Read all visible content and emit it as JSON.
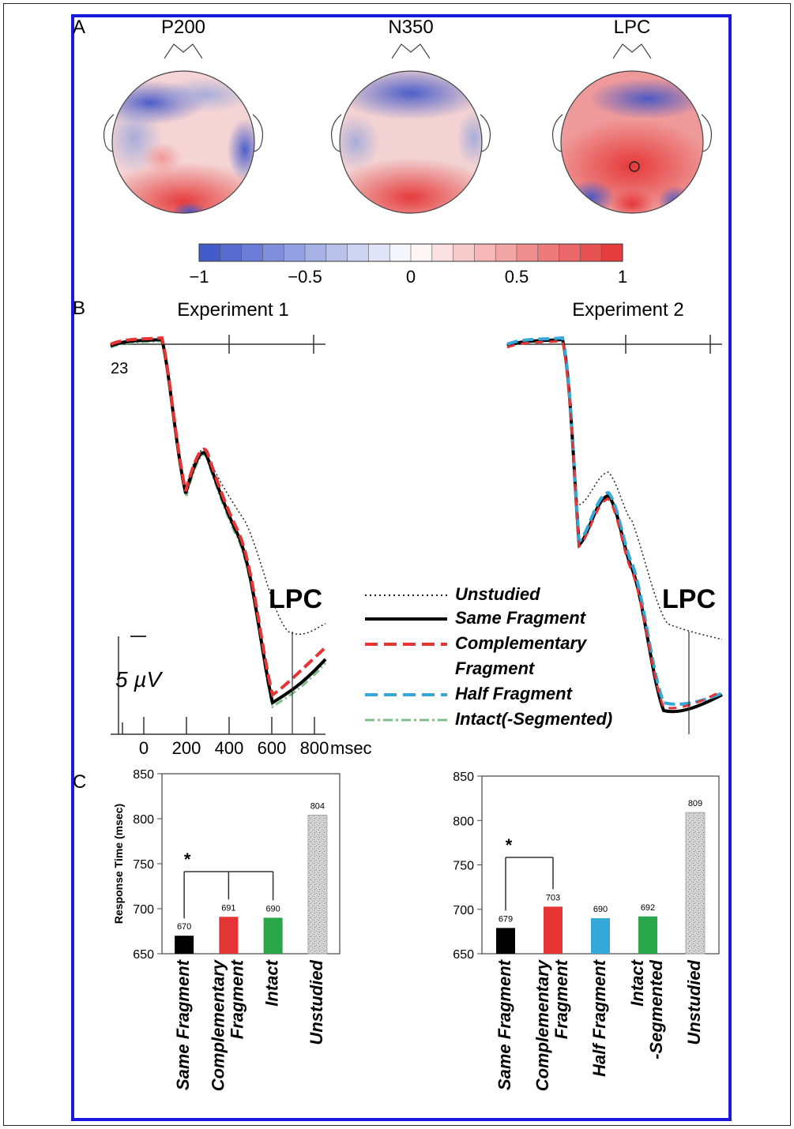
{
  "panel_labels": {
    "a": "A",
    "b": "B",
    "c": "C"
  },
  "topomaps": [
    {
      "label": "P200"
    },
    {
      "label": "N350"
    },
    {
      "label": "LPC"
    }
  ],
  "colorbar": {
    "ticks": [
      "−1",
      "−0.5",
      "0",
      "0.5",
      "1"
    ],
    "colors": {
      "negative": "#3a52c8",
      "neutral": "#ffffff",
      "positive": "#e53434"
    }
  },
  "erp": {
    "electrode_label": "23",
    "scale_label": "5 µV",
    "x_ticks": [
      "0",
      "200",
      "400",
      "600",
      "800"
    ],
    "x_unit": "msec",
    "lpc_label": "LPC",
    "experiments": [
      {
        "title": "Experiment 1"
      },
      {
        "title": "Experiment 2"
      }
    ],
    "legend": [
      {
        "label": "Unstudied",
        "color": "#222222",
        "style": "dotted"
      },
      {
        "label": "Same Fragment",
        "color": "#000000",
        "style": "solid"
      },
      {
        "label": "Complementary Fragment",
        "color": "#e53434",
        "style": "dashed"
      },
      {
        "label": "Half Fragment",
        "color": "#36a8d8",
        "style": "dashed"
      },
      {
        "label": "Intact(-Segmented)",
        "color": "#7cc08a",
        "style": "dashdot"
      }
    ]
  },
  "chart_data": [
    {
      "type": "bar",
      "title": "",
      "ylabel": "Response Time (msec)",
      "ylim": [
        650,
        850
      ],
      "y_ticks": [
        650,
        700,
        750,
        800,
        850
      ],
      "categories": [
        "Same Fragment",
        "Complementary Fragment",
        "Intact",
        "Unstudied"
      ],
      "values": [
        670,
        691,
        690,
        804
      ],
      "colors": [
        "#000000",
        "#e53434",
        "#2aa64a",
        "#c8c8c8"
      ],
      "significance": "*"
    },
    {
      "type": "bar",
      "title": "",
      "ylabel": "",
      "ylim": [
        650,
        850
      ],
      "y_ticks": [
        650,
        700,
        750,
        800,
        850
      ],
      "categories": [
        "Same Fragment",
        "Complementary Fragment",
        "Half Fragment",
        "Intact -Segmented",
        "Unstudied"
      ],
      "values": [
        679,
        703,
        690,
        692,
        809
      ],
      "colors": [
        "#000000",
        "#e53434",
        "#36a8d8",
        "#2aa64a",
        "#c8c8c8"
      ],
      "significance": "*"
    }
  ]
}
